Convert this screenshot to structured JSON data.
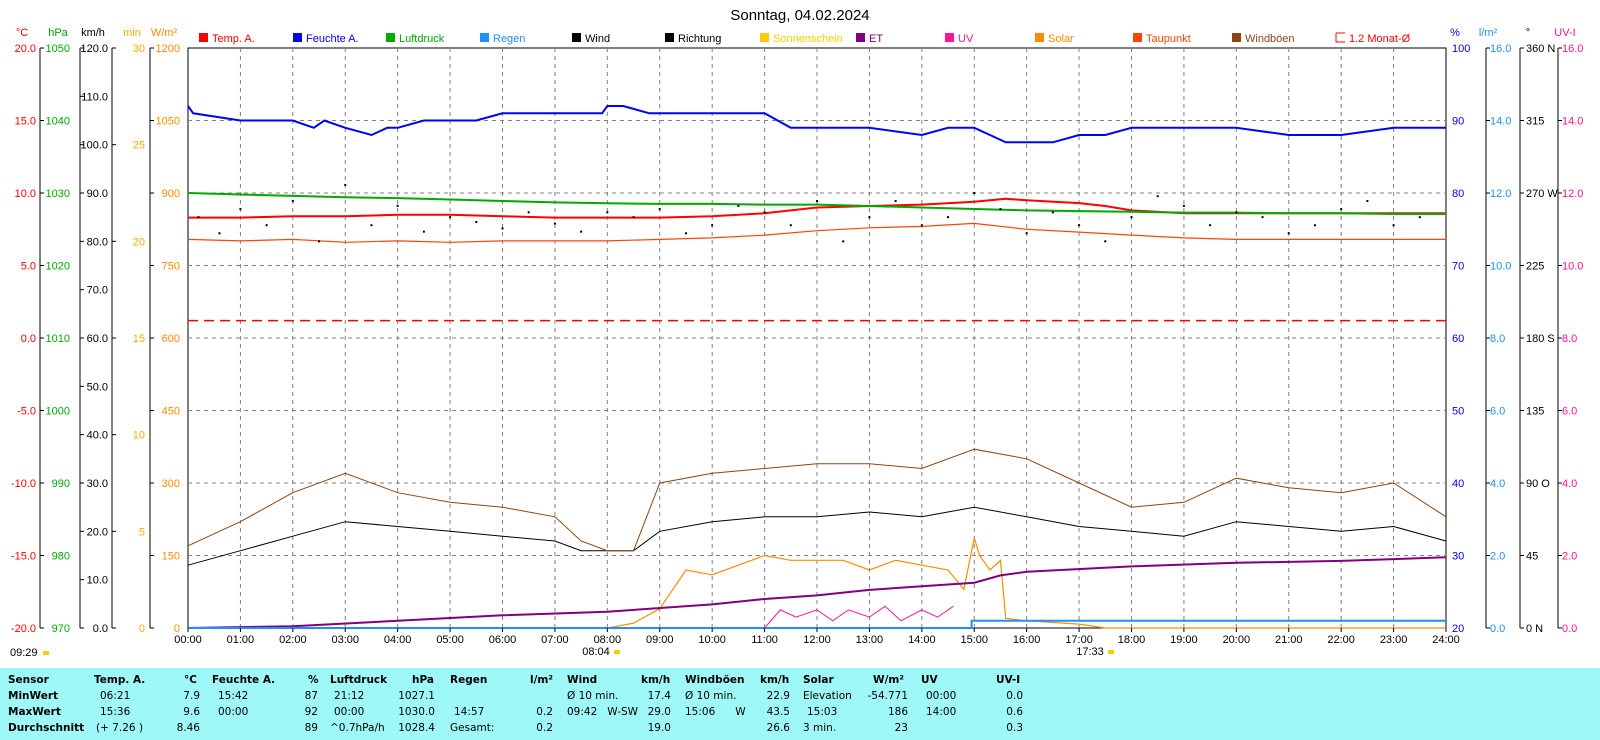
{
  "chart_data": {
    "type": "line",
    "title": "Sonntag, 04.02.2024",
    "x": [
      "00:00",
      "01:00",
      "02:00",
      "03:00",
      "04:00",
      "05:00",
      "06:00",
      "07:00",
      "08:00",
      "09:00",
      "10:00",
      "11:00",
      "12:00",
      "13:00",
      "14:00",
      "15:00",
      "16:00",
      "17:00",
      "18:00",
      "19:00",
      "20:00",
      "21:00",
      "22:00",
      "23:00",
      "24:00"
    ],
    "grid": true,
    "legend_position": "top",
    "legend": [
      {
        "name": "Temp. A.",
        "color": "#ff0000"
      },
      {
        "name": "Feuchte A.",
        "color": "#0000ff"
      },
      {
        "name": "Luftdruck",
        "color": "#00aa00"
      },
      {
        "name": "Regen",
        "color": "#1e90ff"
      },
      {
        "name": "Wind",
        "color": "#000000"
      },
      {
        "name": "Richtung",
        "color": "#000000"
      },
      {
        "name": "Sonnenschein",
        "color": "#ffcc00"
      },
      {
        "name": "ET",
        "color": "#800080"
      },
      {
        "name": "UV",
        "color": "#ff1493"
      },
      {
        "name": "Solar",
        "color": "#ff8c00"
      },
      {
        "name": "Taupunkt",
        "color": "#ff4500"
      },
      {
        "name": "Windböen",
        "color": "#8b4513"
      },
      {
        "name": "1.2 Monat-Ø",
        "color": "#ff0000"
      }
    ],
    "axes": {
      "temp": {
        "unit": "°C",
        "color": "#ff0000",
        "ticks": [
          "20.0",
          "15.0",
          "10.0",
          "5.0",
          "0.0",
          "-5.0",
          "-10.0",
          "-15.0",
          "-20.0"
        ]
      },
      "pressure": {
        "unit": "hPa",
        "color": "#00aa00",
        "ticks": [
          "1050",
          "1040",
          "1030",
          "1020",
          "1010",
          "1000",
          "990",
          "980",
          "970"
        ]
      },
      "wind": {
        "unit": "km/h",
        "color": "#000000",
        "ticks": [
          "120.0",
          "110.0",
          "100.0",
          "90.0",
          "80.0",
          "70.0",
          "60.0",
          "50.0",
          "40.0",
          "30.0",
          "20.0",
          "10.0",
          "0.0"
        ]
      },
      "sunshine": {
        "unit": "min",
        "color": "#ffaa00",
        "ticks": [
          "30",
          "25",
          "20",
          "15",
          "10",
          "5",
          "0"
        ]
      },
      "solar": {
        "unit": "W/m²",
        "color": "#ff8c00",
        "ticks": [
          "1200",
          "1050",
          "900",
          "750",
          "600",
          "450",
          "300",
          "150",
          "0"
        ]
      },
      "humidity": {
        "unit": "%",
        "color": "#0000ff",
        "ticks": [
          "100",
          "90",
          "80",
          "70",
          "60",
          "50",
          "40",
          "30",
          "20"
        ]
      },
      "rain": {
        "unit": "l/m²",
        "color": "#1e90ff",
        "ticks": [
          "16.0",
          "14.0",
          "12.0",
          "10.0",
          "8.0",
          "6.0",
          "4.0",
          "2.0",
          "0.0"
        ]
      },
      "direction": {
        "unit": "°",
        "color": "#000000",
        "ticks": [
          "360 N",
          "315",
          "270 W",
          "225",
          "180 S",
          "135",
          "90 O",
          "45",
          "0 N"
        ]
      },
      "uvi": {
        "unit": "UV-I",
        "color": "#ff1493",
        "ticks": [
          "16.0",
          "14.0",
          "12.0",
          "10.0",
          "8.0",
          "6.0",
          "4.0",
          "2.0",
          "0.0"
        ]
      }
    },
    "series": [
      {
        "name": "Temp. A.",
        "axis": "temp",
        "color": "#ff0000",
        "x": [
          0,
          1,
          2,
          3,
          4,
          5,
          6,
          7,
          8,
          9,
          10,
          11,
          12,
          13,
          14,
          15,
          15.6,
          16,
          17,
          17.5,
          18,
          19,
          20,
          21,
          22,
          23,
          24
        ],
        "y": [
          8.3,
          8.3,
          8.4,
          8.4,
          8.5,
          8.5,
          8.4,
          8.3,
          8.3,
          8.3,
          8.4,
          8.6,
          9.0,
          9.1,
          9.2,
          9.4,
          9.6,
          9.5,
          9.3,
          9.1,
          8.8,
          8.6,
          8.6,
          8.6,
          8.6,
          8.6,
          8.6
        ]
      },
      {
        "name": "Feuchte A.",
        "axis": "humidity",
        "color": "#0000ff",
        "x": [
          0,
          0.1,
          1,
          2,
          2.4,
          2.6,
          3,
          3.5,
          3.8,
          4,
          4.5,
          5,
          5.5,
          6,
          7,
          7.9,
          8,
          8.3,
          8.8,
          9,
          10,
          11,
          11.5,
          12,
          13,
          14,
          14.5,
          15,
          15.3,
          15.6,
          16,
          16.5,
          17,
          17.5,
          18,
          19,
          20,
          21,
          22,
          23,
          24
        ],
        "y": [
          92,
          91,
          90,
          90,
          89,
          90,
          89,
          88,
          89,
          89,
          90,
          90,
          90,
          91,
          91,
          91,
          92,
          92,
          91,
          91,
          91,
          91,
          89,
          89,
          89,
          88,
          89,
          89,
          88,
          87,
          87,
          87,
          88,
          88,
          89,
          89,
          89,
          88,
          88,
          89,
          89
        ]
      },
      {
        "name": "Luftdruck",
        "axis": "pressure",
        "color": "#00aa00",
        "x": [
          0,
          1,
          2,
          3,
          4,
          5,
          6,
          7,
          8,
          9,
          10,
          11,
          12,
          13,
          14,
          15,
          16,
          17,
          18,
          19,
          20,
          21,
          22,
          23,
          24
        ],
        "y": [
          1030,
          1029.8,
          1029.6,
          1029.4,
          1029.3,
          1029.1,
          1028.9,
          1028.7,
          1028.6,
          1028.5,
          1028.5,
          1028.4,
          1028.4,
          1028.2,
          1028.0,
          1027.8,
          1027.6,
          1027.5,
          1027.4,
          1027.3,
          1027.3,
          1027.2,
          1027.2,
          1027.1,
          1027.1
        ]
      },
      {
        "name": "Taupunkt",
        "axis": "temp",
        "color": "#ff4500",
        "x": [
          0,
          1,
          2,
          3,
          4,
          5,
          6,
          7,
          8,
          9,
          10,
          11,
          12,
          13,
          14,
          15,
          16,
          17,
          18,
          19,
          20,
          21,
          22,
          23,
          24
        ],
        "y": [
          6.8,
          6.7,
          6.8,
          6.6,
          6.7,
          6.6,
          6.7,
          6.7,
          6.7,
          6.8,
          6.9,
          7.1,
          7.4,
          7.6,
          7.7,
          7.9,
          7.5,
          7.3,
          7.1,
          6.9,
          6.8,
          6.8,
          6.8,
          6.8,
          6.8
        ]
      },
      {
        "name": "1.2 Monat-Ø",
        "axis": "temp",
        "color": "#ff0000",
        "style": "dashed",
        "x": [
          0,
          24
        ],
        "y": [
          1.2,
          1.2
        ]
      },
      {
        "name": "Wind",
        "axis": "wind",
        "color": "#000000",
        "x": [
          0,
          1,
          2,
          3,
          4,
          5,
          6,
          7,
          7.5,
          8,
          8.5,
          9,
          10,
          11,
          12,
          13,
          14,
          15,
          16,
          17,
          18,
          19,
          20,
          21,
          22,
          23,
          24
        ],
        "y": [
          13,
          16,
          19,
          22,
          21,
          20,
          19,
          18,
          16,
          16,
          16,
          20,
          22,
          23,
          23,
          24,
          23,
          25,
          23,
          21,
          20,
          19,
          22,
          21,
          20,
          21,
          18
        ]
      },
      {
        "name": "Windböen",
        "axis": "wind",
        "color": "#8b4513",
        "x": [
          0,
          1,
          2,
          3,
          4,
          5,
          6,
          7,
          7.5,
          8,
          8.5,
          9,
          10,
          11,
          12,
          13,
          14,
          15,
          16,
          17,
          18,
          19,
          20,
          21,
          22,
          23,
          24
        ],
        "y": [
          17,
          22,
          28,
          32,
          28,
          26,
          25,
          23,
          18,
          16,
          16,
          30,
          32,
          33,
          34,
          34,
          33,
          37,
          35,
          30,
          25,
          26,
          31,
          29,
          28,
          30,
          23
        ]
      },
      {
        "name": "Solar",
        "axis": "solar",
        "color": "#ff8c00",
        "x": [
          0,
          8.0,
          8.5,
          9.0,
          9.5,
          10,
          10.5,
          11,
          11.5,
          12,
          12.5,
          13,
          13.5,
          14,
          14.5,
          14.8,
          15.0,
          15.1,
          15.3,
          15.5,
          15.6,
          16,
          17,
          17.5,
          24
        ],
        "y": [
          0,
          0,
          10,
          40,
          120,
          110,
          130,
          150,
          140,
          140,
          140,
          120,
          140,
          130,
          120,
          80,
          186,
          150,
          120,
          140,
          20,
          15,
          8,
          0,
          0
        ]
      },
      {
        "name": "ET",
        "axis": "rain",
        "color": "#800080",
        "x": [
          0,
          2,
          4,
          6,
          8,
          10,
          11,
          12,
          13,
          14,
          15,
          15.5,
          16,
          18,
          20,
          22,
          23,
          24
        ],
        "y": [
          0,
          0.05,
          0.2,
          0.35,
          0.45,
          0.65,
          0.8,
          0.9,
          1.05,
          1.15,
          1.25,
          1.45,
          1.55,
          1.7,
          1.8,
          1.85,
          1.9,
          1.95
        ]
      },
      {
        "name": "Regen",
        "axis": "rain",
        "color": "#1e90ff",
        "x": [
          0,
          14.95,
          14.95,
          24
        ],
        "y": [
          0,
          0,
          0.2,
          0.2
        ]
      },
      {
        "name": "UV",
        "axis": "uvi",
        "color": "#ff1493",
        "x": [
          11,
          11.3,
          11.6,
          12,
          12.3,
          12.6,
          13,
          13.3,
          13.6,
          14,
          14.3,
          14.6
        ],
        "y": [
          0,
          0.5,
          0.3,
          0.5,
          0.2,
          0.5,
          0.3,
          0.6,
          0.2,
          0.5,
          0.3,
          0.6
        ]
      },
      {
        "name": "Richtung",
        "axis": "direction",
        "color": "#000000",
        "style": "points",
        "x": [
          0.2,
          0.6,
          1,
          1.5,
          2,
          2.5,
          3,
          3.5,
          4,
          4.5,
          5,
          5.5,
          6,
          6.5,
          7,
          7.5,
          8,
          8.5,
          9,
          9.5,
          10,
          10.5,
          11,
          11.5,
          12,
          12.5,
          13,
          13.5,
          14,
          14.5,
          15,
          15.5,
          16,
          16.5,
          17,
          17.5,
          18,
          18.5,
          19,
          19.5,
          20,
          20.5,
          21,
          21.5,
          22,
          22.5,
          23,
          23.5
        ],
        "y": [
          255,
          245,
          260,
          250,
          265,
          240,
          275,
          250,
          262,
          246,
          255,
          252,
          248,
          258,
          251,
          246,
          258,
          255,
          260,
          245,
          250,
          262,
          258,
          250,
          265,
          240,
          255,
          265,
          250,
          255,
          270,
          260,
          245,
          258,
          250,
          240,
          255,
          268,
          262,
          250,
          258,
          255,
          245,
          250,
          260,
          265,
          250,
          255
        ]
      }
    ],
    "markers": [
      {
        "label": "09:29",
        "color": "#ffcc00"
      },
      {
        "label": "08:04",
        "color": "#ffcc00"
      },
      {
        "label": "17:33",
        "color": "#ffcc00"
      }
    ]
  },
  "stats": {
    "headers": {
      "sensor": "Sensor",
      "temp": "Temp. A.",
      "temp_unit": "°C",
      "hum": "Feuchte A.",
      "hum_unit": "%",
      "press": "Luftdruck",
      "press_unit": "hPa",
      "rain": "Regen",
      "rain_unit": "l/m²",
      "wind": "Wind",
      "wind_unit": "km/h",
      "gust": "Windböen",
      "gust_unit": "km/h",
      "solar": "Solar",
      "solar_unit": "W/m²",
      "uv": "UV",
      "uv_unit": "UV-I"
    },
    "rows": [
      {
        "label": "MinWert",
        "temp_time": "06:21",
        "temp_val": "7.9",
        "hum_time": "15:42",
        "hum_val": "87",
        "press_time": "21:12",
        "press_val": "1027.1",
        "rain_label": "",
        "rain_val": "",
        "wind_label": "Ø 10 min.",
        "wind_val": "17.4",
        "gust_label": "Ø 10 min.",
        "gust_val": "22.9",
        "solar_label": "Elevation",
        "solar_val": "-54.771",
        "uv_time": "00:00",
        "uv_val": "0.0"
      },
      {
        "label": "MaxWert",
        "temp_time": "15:36",
        "temp_val": "9.6",
        "hum_time": "00:00",
        "hum_val": "92",
        "press_time": "00:00",
        "press_val": "1030.0",
        "rain_label": "14:57",
        "rain_val": "0.2",
        "wind_label": "09:42   W-SW",
        "wind_val": "29.0",
        "gust_label": "15:06      W",
        "gust_val": "43.5",
        "solar_label": "15:03",
        "solar_val": "186",
        "uv_time": "14:00",
        "uv_val": "0.6"
      },
      {
        "label": "Durchschnitt",
        "temp_time": "(+ 7.26 )",
        "temp_val": "8.46",
        "hum_time": "",
        "hum_val": "89",
        "press_time": "^0.7hPa/h",
        "press_val": "1028.4",
        "rain_label": "Gesamt:",
        "rain_val": "0.2",
        "wind_label": "",
        "wind_val": "19.0",
        "gust_label": "",
        "gust_val": "26.6",
        "solar_label": "3 min.",
        "solar_val": "23",
        "uv_time": "",
        "uv_val": "0.3"
      }
    ]
  }
}
